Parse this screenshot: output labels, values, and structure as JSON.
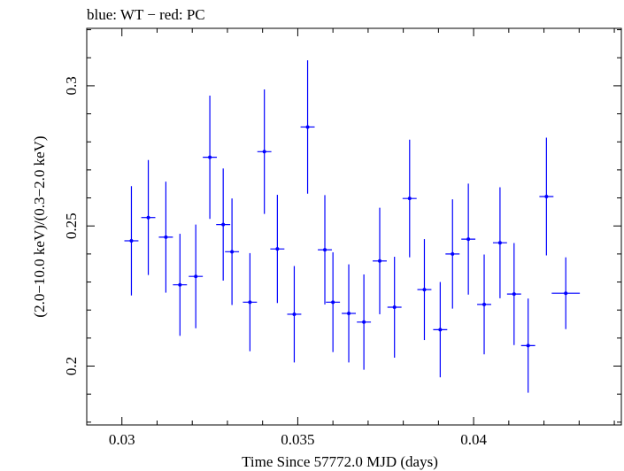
{
  "chart_data": {
    "type": "scatter",
    "title": "blue: WT − red: PC",
    "xlabel": "Time Since 57772.0 MJD (days)",
    "ylabel": "(2.0−10.0 keV)/(0.3−2.0 keV)",
    "xlim": [
      0.029,
      0.0442
    ],
    "ylim": [
      0.179,
      0.3205
    ],
    "x_ticks": [
      {
        "value": 0.03,
        "label": "0.03"
      },
      {
        "value": 0.035,
        "label": "0.035"
      },
      {
        "value": 0.04,
        "label": "0.04"
      }
    ],
    "y_ticks": [
      {
        "value": 0.2,
        "label": "0.2"
      },
      {
        "value": 0.25,
        "label": "0.25"
      },
      {
        "value": 0.3,
        "label": "0.3"
      }
    ],
    "grid": false,
    "series": [
      {
        "color": "#0000ff",
        "points": [
          {
            "x": 0.03027,
            "xerr": 0.0002,
            "y": 0.2447,
            "yerr": 0.0195
          },
          {
            "x": 0.03075,
            "xerr": 0.0002,
            "y": 0.253,
            "yerr": 0.0205
          },
          {
            "x": 0.03125,
            "xerr": 0.0002,
            "y": 0.246,
            "yerr": 0.0198
          },
          {
            "x": 0.03165,
            "xerr": 0.0002,
            "y": 0.229,
            "yerr": 0.0182
          },
          {
            "x": 0.0321,
            "xerr": 0.0002,
            "y": 0.232,
            "yerr": 0.0185
          },
          {
            "x": 0.0325,
            "xerr": 0.0002,
            "y": 0.2745,
            "yerr": 0.022
          },
          {
            "x": 0.03288,
            "xerr": 0.0002,
            "y": 0.2505,
            "yerr": 0.02
          },
          {
            "x": 0.03313,
            "xerr": 0.0002,
            "y": 0.2408,
            "yerr": 0.019
          },
          {
            "x": 0.03364,
            "xerr": 0.0002,
            "y": 0.2228,
            "yerr": 0.0175
          },
          {
            "x": 0.03405,
            "xerr": 0.0002,
            "y": 0.2765,
            "yerr": 0.0222
          },
          {
            "x": 0.03442,
            "xerr": 0.0002,
            "y": 0.2418,
            "yerr": 0.0193
          },
          {
            "x": 0.0349,
            "xerr": 0.0002,
            "y": 0.2185,
            "yerr": 0.0172
          },
          {
            "x": 0.03528,
            "xerr": 0.0002,
            "y": 0.2853,
            "yerr": 0.0238
          },
          {
            "x": 0.03577,
            "xerr": 0.0002,
            "y": 0.2415,
            "yerr": 0.0195
          },
          {
            "x": 0.036,
            "xerr": 0.0002,
            "y": 0.2228,
            "yerr": 0.0178
          },
          {
            "x": 0.03645,
            "xerr": 0.0002,
            "y": 0.2188,
            "yerr": 0.0175
          },
          {
            "x": 0.03688,
            "xerr": 0.0002,
            "y": 0.2157,
            "yerr": 0.017
          },
          {
            "x": 0.03733,
            "xerr": 0.0002,
            "y": 0.2375,
            "yerr": 0.019
          },
          {
            "x": 0.03775,
            "xerr": 0.0002,
            "y": 0.221,
            "yerr": 0.018
          },
          {
            "x": 0.03818,
            "xerr": 0.0002,
            "y": 0.2598,
            "yerr": 0.021
          },
          {
            "x": 0.0386,
            "xerr": 0.0002,
            "y": 0.2273,
            "yerr": 0.018
          },
          {
            "x": 0.03905,
            "xerr": 0.0002,
            "y": 0.213,
            "yerr": 0.017
          },
          {
            "x": 0.0394,
            "xerr": 0.0002,
            "y": 0.24,
            "yerr": 0.0195
          },
          {
            "x": 0.03985,
            "xerr": 0.0002,
            "y": 0.2453,
            "yerr": 0.0198
          },
          {
            "x": 0.0403,
            "xerr": 0.0002,
            "y": 0.222,
            "yerr": 0.0178
          },
          {
            "x": 0.04075,
            "xerr": 0.0002,
            "y": 0.244,
            "yerr": 0.0198
          },
          {
            "x": 0.04115,
            "xerr": 0.0002,
            "y": 0.2257,
            "yerr": 0.0182
          },
          {
            "x": 0.04155,
            "xerr": 0.0002,
            "y": 0.2073,
            "yerr": 0.0168
          },
          {
            "x": 0.04207,
            "xerr": 0.0002,
            "y": 0.2605,
            "yerr": 0.021
          },
          {
            "x": 0.04262,
            "xerr": 0.0004,
            "y": 0.226,
            "yerr": 0.0128
          }
        ]
      }
    ]
  }
}
